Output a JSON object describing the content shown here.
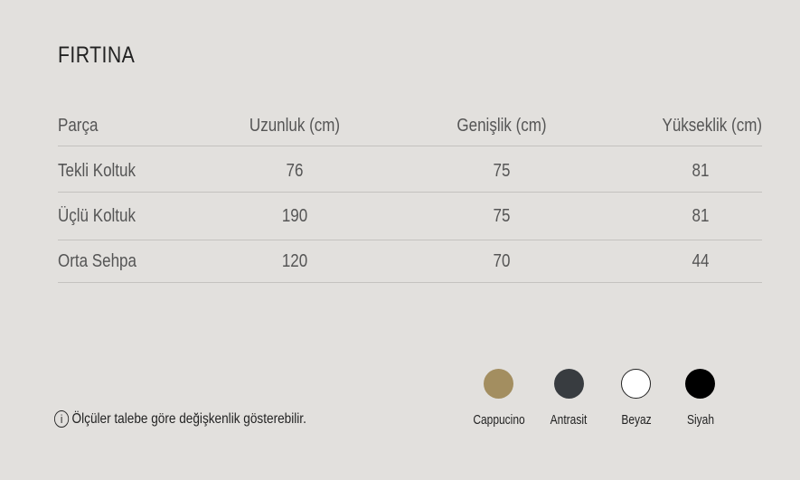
{
  "title": "FIRTINA",
  "table": {
    "headers": [
      "Parça",
      "Uzunluk (cm)",
      "Genişlik (cm)",
      "Yükseklik (cm)"
    ],
    "rows": [
      [
        "Tekli Koltuk",
        "76",
        "75",
        "81"
      ],
      [
        "Üçlü Koltuk",
        "190",
        "75",
        "81"
      ],
      [
        "Orta Sehpa",
        "120",
        "70",
        "44"
      ]
    ]
  },
  "note": {
    "icon": "info-icon",
    "glyph": "i",
    "text": "Ölçüler talebe göre değişkenlik gösterebilir."
  },
  "colors": [
    {
      "label": "Cappucino",
      "hex": "#a38e60"
    },
    {
      "label": "Antrasit",
      "hex": "#383c40"
    },
    {
      "label": "Beyaz",
      "hex": "#ffffff"
    },
    {
      "label": "Siyah",
      "hex": "#000000"
    }
  ]
}
